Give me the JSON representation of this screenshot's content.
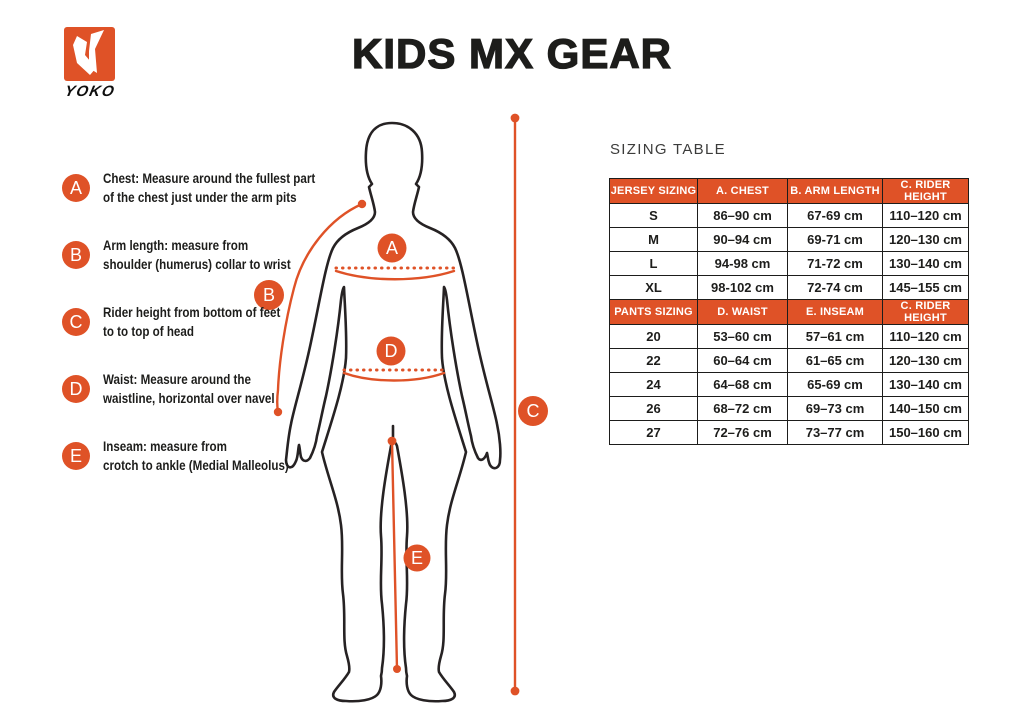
{
  "header": {
    "brand": "YOKO",
    "title": "KIDS MX GEAR"
  },
  "colors": {
    "accent": "#DF5227",
    "outline": "#262223",
    "text": "#1D1D1B"
  },
  "diagram": {
    "markers": [
      "A",
      "B",
      "C",
      "D",
      "E"
    ]
  },
  "measurements": [
    {
      "letter": "A",
      "lines": [
        "Chest: Measure around  the fullest part",
        "of the chest just under the arm pits"
      ]
    },
    {
      "letter": "B",
      "lines": [
        "Arm length: measure from",
        "shoulder (humerus) collar to wrist"
      ]
    },
    {
      "letter": "C",
      "lines": [
        "Rider height from bottom of feet",
        "to to top of head"
      ]
    },
    {
      "letter": "D",
      "lines": [
        "Waist: Measure around the",
        "waistline, horizontal over navel"
      ]
    },
    {
      "letter": "E",
      "lines": [
        "Inseam: measure from",
        "crotch to ankle (Medial Malleolus)"
      ]
    }
  ],
  "sizing_table": {
    "heading": "SIZING TABLE",
    "sections": [
      {
        "headers": [
          "JERSEY SIZING",
          "A. CHEST",
          "B. ARM LENGTH",
          "C. RIDER HEIGHT"
        ],
        "rows": [
          [
            "S",
            "86–90 cm",
            "67-69 cm",
            "110–120 cm"
          ],
          [
            "M",
            "90–94 cm",
            "69-71 cm",
            "120–130 cm"
          ],
          [
            "L",
            "94-98 cm",
            "71-72 cm",
            "130–140 cm"
          ],
          [
            "XL",
            "98-102 cm",
            "72-74 cm",
            "145–155 cm"
          ]
        ]
      },
      {
        "headers": [
          "PANTS SIZING",
          "D. WAIST",
          "E. INSEAM",
          "C. RIDER HEIGHT"
        ],
        "rows": [
          [
            "20",
            "53–60 cm",
            "57–61 cm",
            "110–120 cm"
          ],
          [
            "22",
            "60–64 cm",
            "61–65 cm",
            "120–130 cm"
          ],
          [
            "24",
            "64–68 cm",
            "65-69 cm",
            "130–140 cm"
          ],
          [
            "26",
            "68–72 cm",
            "69–73 cm",
            "140–150 cm"
          ],
          [
            "27",
            "72–76 cm",
            "73–77 cm",
            "150–160 cm"
          ]
        ]
      }
    ]
  }
}
